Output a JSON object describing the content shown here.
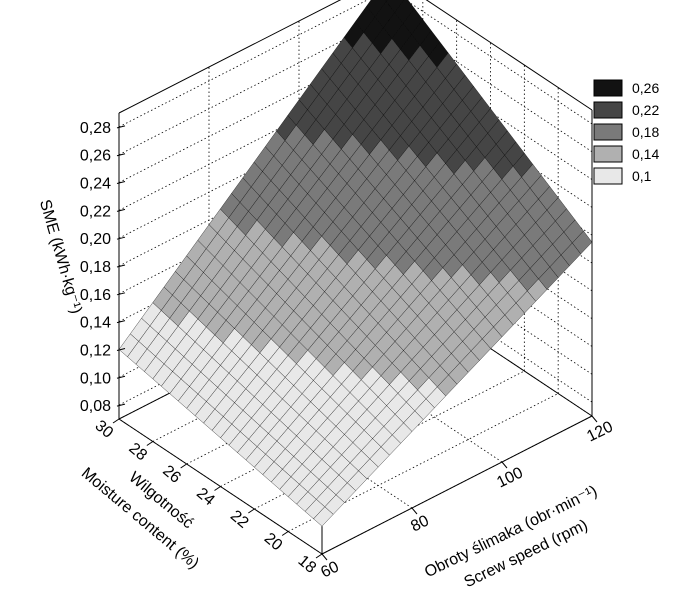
{
  "chart_data": {
    "type": "surface3d",
    "title": "",
    "z_axis": {
      "label": "SME (kWh·kg⁻¹)",
      "ticks": [
        "0,08",
        "0,10",
        "0,12",
        "0,14",
        "0,16",
        "0,18",
        "0,20",
        "0,22",
        "0,24",
        "0,26",
        "0,28"
      ],
      "range": [
        0.07,
        0.29
      ]
    },
    "x_axis": {
      "label_line1": "Obroty ślimaka (obr·min⁻¹)",
      "label_line2": "Screw speed (rpm)",
      "ticks": [
        "60",
        "80",
        "100",
        "120"
      ],
      "range": [
        60,
        120
      ]
    },
    "y_axis": {
      "label_line1": "Wilgotność",
      "label_line2": "Moisture content (%)",
      "ticks": [
        "18",
        "20",
        "22",
        "24",
        "26",
        "28",
        "30"
      ],
      "range": [
        18,
        30
      ]
    },
    "surface_corners": [
      {
        "screw_speed": 60,
        "moisture": 18,
        "sme": 0.09
      },
      {
        "screw_speed": 60,
        "moisture": 30,
        "sme": 0.12
      },
      {
        "screw_speed": 120,
        "moisture": 18,
        "sme": 0.195
      },
      {
        "screw_speed": 120,
        "moisture": 30,
        "sme": 0.29
      }
    ],
    "legend": {
      "placement": "right",
      "entries": [
        {
          "label": "0,26",
          "color": "#121212"
        },
        {
          "label": "0,22",
          "color": "#454545"
        },
        {
          "label": "0,18",
          "color": "#7a7a7a"
        },
        {
          "label": "0,14",
          "color": "#b0b0b0"
        },
        {
          "label": "0,1",
          "color": "#e8e8e8"
        }
      ]
    },
    "grid": true
  }
}
